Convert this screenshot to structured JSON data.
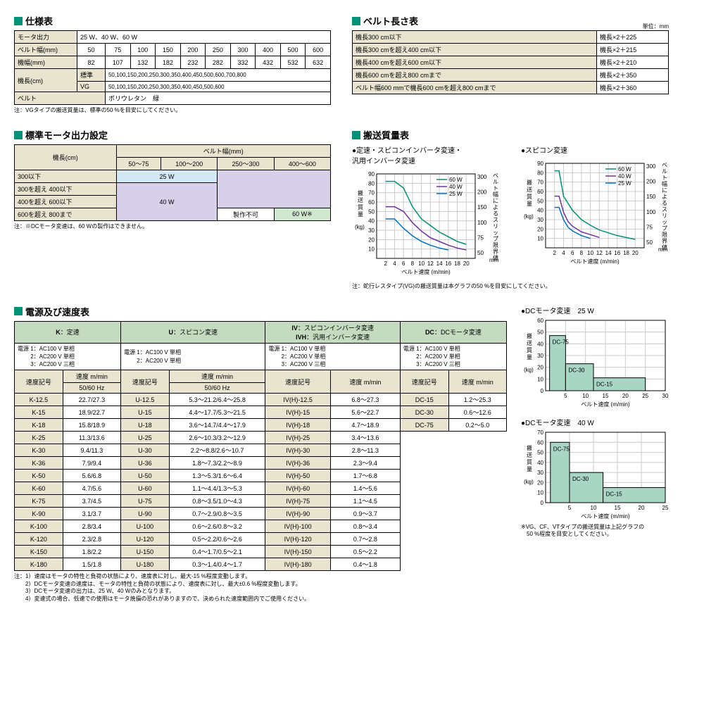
{
  "spec": {
    "title": "仕様表",
    "rows": [
      {
        "label": "モータ出力",
        "val": "25 W、40 W、60 W",
        "colspan": 10
      },
      {
        "label": "ベルト幅(mm)",
        "vals": [
          "50",
          "75",
          "100",
          "150",
          "200",
          "250",
          "300",
          "400",
          "500",
          "600"
        ]
      },
      {
        "label": "機幅(mm)",
        "vals": [
          "82",
          "107",
          "132",
          "182",
          "232",
          "282",
          "332",
          "432",
          "532",
          "632"
        ]
      }
    ],
    "kicho_label": "機長(cm)",
    "kicho_std_label": "標準",
    "kicho_std": "50,100,150,200,250,300,350,400,450,500,600,700,800",
    "kicho_vg_label": "VG",
    "kicho_vg": "50,100,150,200,250,300,350,400,450,500,600",
    "belt_label": "ベルト",
    "belt_val": "ポリウレタン　緑",
    "note": "注：VGタイプの搬送質量は、標準の50 %を目安にしてください。"
  },
  "beltlen": {
    "title": "ベルト長さ表",
    "unit": "単位：mm",
    "rows": [
      [
        "機長300 cm以下",
        "機長×2＋225"
      ],
      [
        "機長300 cmを超え400 cm以下",
        "機長×2＋215"
      ],
      [
        "機長400 cmを超え600 cm以下",
        "機長×2＋210"
      ],
      [
        "機長600 cmを超え800 cmまで",
        "機長×2＋350"
      ],
      [
        "ベルト幅600 mmで機長600 cmを超え800 cmまで",
        "機長×2＋360"
      ]
    ]
  },
  "motorset": {
    "title": "標準モータ出力設定",
    "kicho": "機長(cm)",
    "beltw": "ベルト幅(mm)",
    "cols": [
      "50～75",
      "100～200",
      "250～300",
      "400～600"
    ],
    "rows": [
      "300以下",
      "300を超え 400以下",
      "400を超え 600以下",
      "600を超え 800まで"
    ],
    "w25": "25 W",
    "w40": "40 W",
    "w60": "60 W※",
    "na": "製作不可",
    "note": "注：※DCモータ変速は、60 Wの製作はできません。"
  },
  "transport": {
    "title": "搬送質量表",
    "chart1_title": "●定速・スピコンインバータ変速・\n汎用インバータ変速",
    "chart2_title": "●スピコン変速",
    "xlabel": "ベルト速度 (m/min)",
    "ylabel": "搬送質量",
    "ylabel2": "ベルト幅によるスリップ限界値",
    "yunit": "(kg)",
    "y2unit": "mm",
    "legend": [
      "60 W",
      "40 W",
      "25 W"
    ],
    "colors": {
      "60": "#009176",
      "40": "#7030a0",
      "25": "#0070c0",
      "grid": "#cccccc",
      "bg": "#ffffff"
    },
    "xlim": [
      0,
      22
    ],
    "ylim": [
      0,
      90
    ],
    "y2labels": [
      "50",
      "75",
      "100",
      "150",
      "200",
      "300"
    ],
    "xticks": [
      2,
      4,
      6,
      8,
      10,
      12,
      14,
      16,
      18,
      20
    ],
    "yticks": [
      10,
      20,
      30,
      40,
      50,
      60,
      70,
      80,
      90
    ],
    "chart1_data": {
      "60": [
        [
          2,
          82
        ],
        [
          4,
          82
        ],
        [
          6,
          75
        ],
        [
          8,
          55
        ],
        [
          10,
          42
        ],
        [
          12,
          35
        ],
        [
          14,
          28
        ],
        [
          16,
          23
        ],
        [
          18,
          18
        ],
        [
          20,
          15
        ]
      ],
      "40": [
        [
          2,
          55
        ],
        [
          4,
          55
        ],
        [
          6,
          50
        ],
        [
          8,
          38
        ],
        [
          10,
          29
        ],
        [
          12,
          22
        ],
        [
          14,
          18
        ],
        [
          16,
          14
        ],
        [
          18,
          11
        ],
        [
          20,
          9
        ]
      ],
      "25": [
        [
          2,
          42
        ],
        [
          4,
          42
        ],
        [
          6,
          32
        ],
        [
          8,
          24
        ],
        [
          10,
          18
        ],
        [
          12,
          14
        ],
        [
          14,
          11
        ],
        [
          16,
          9
        ]
      ]
    },
    "chart2_data": {
      "60": [
        [
          2,
          82
        ],
        [
          3,
          82
        ],
        [
          4,
          55
        ],
        [
          6,
          40
        ],
        [
          8,
          30
        ],
        [
          10,
          24
        ],
        [
          12,
          19
        ],
        [
          14,
          16
        ],
        [
          16,
          13
        ],
        [
          18,
          11
        ],
        [
          20,
          9
        ]
      ],
      "40": [
        [
          2,
          55
        ],
        [
          3,
          55
        ],
        [
          4,
          38
        ],
        [
          5,
          28
        ],
        [
          6,
          23
        ],
        [
          8,
          17
        ],
        [
          10,
          14
        ],
        [
          12,
          11
        ]
      ],
      "25": [
        [
          2,
          43
        ],
        [
          3,
          43
        ],
        [
          4,
          30
        ],
        [
          5,
          22
        ],
        [
          6,
          18
        ],
        [
          8,
          13
        ],
        [
          10,
          10
        ]
      ]
    },
    "note": "注：蛇行レスタイプ(VG)の搬送質量は本グラフの50 %を目安にしてください。"
  },
  "speed": {
    "title": "電源及び速度表",
    "headers": [
      {
        "code": "K",
        "label": "定速",
        "ps": [
          "電源 1：AC100 V 単相",
          "　　 2：AC200 V 単相",
          "　　 3：AC200 V 三相"
        ]
      },
      {
        "code": "U",
        "label": "スピコン変速",
        "ps": [
          "電源 1：AC100 V 単相",
          "　　 2：AC200 V 単相"
        ]
      },
      {
        "code": "IV/IVH",
        "label": "スピコンインバータ変速/汎用インバータ変速",
        "ps": [
          "電源 1：AC100 V 単相",
          "　　 2：AC200 V 単相",
          "　　 3：AC200 V 三相"
        ]
      },
      {
        "code": "DC",
        "label": "DCモータ変速",
        "ps": [
          "電源 1：AC100 V 単相",
          "　　 2：AC200 V 単相",
          "　　 3：AC200 V 三相"
        ]
      }
    ],
    "sub": [
      "速度記号",
      "速度 m/min",
      "50/60 Hz"
    ],
    "rows": [
      [
        "K-12.5",
        "22.7/27.3",
        "U-12.5",
        "5.3～21.2/6.4～25.8",
        "IV(H)-12.5",
        "6.8～27.3",
        "DC-15",
        "1.2～25.3"
      ],
      [
        "K-15",
        "18.9/22.7",
        "U-15",
        "4.4～17.7/5.3～21.5",
        "IV(H)-15",
        "5.6～22.7",
        "DC-30",
        "0.6～12.6"
      ],
      [
        "K-18",
        "15.8/18.9",
        "U-18",
        "3.6～14.7/4.4～17.9",
        "IV(H)-18",
        "4.7～18.9",
        "DC-75",
        "0.2～5.0"
      ],
      [
        "K-25",
        "11.3/13.6",
        "U-25",
        "2.6～10.3/3.2～12.9",
        "IV(H)-25",
        "3.4～13.6"
      ],
      [
        "K-30",
        "9.4/11.3",
        "U-30",
        "2.2～8.8/2.6～10.7",
        "IV(H)-30",
        "2.8～11.3"
      ],
      [
        "K-36",
        "7.9/9.4",
        "U-36",
        "1.8～7.3/2.2～8.9",
        "IV(H)-36",
        "2.3～9.4"
      ],
      [
        "K-50",
        "5.6/6.8",
        "U-50",
        "1.3～5.3/1.6～6.4",
        "IV(H)-50",
        "1.7～6.8"
      ],
      [
        "K-60",
        "4.7/5.6",
        "U-60",
        "1.1～4.4/1.3～5.3",
        "IV(H)-60",
        "1.4～5.6"
      ],
      [
        "K-75",
        "3.7/4.5",
        "U-75",
        "0.8～3.5/1.0～4.3",
        "IV(H)-75",
        "1.1～4.5"
      ],
      [
        "K-90",
        "3.1/3.7",
        "U-90",
        "0.7～2.9/0.8～3.5",
        "IV(H)-90",
        "0.9～3.7"
      ],
      [
        "K-100",
        "2.8/3.4",
        "U-100",
        "0.6～2.6/0.8～3.2",
        "IV(H)-100",
        "0.8～3.4"
      ],
      [
        "K-120",
        "2.3/2.8",
        "U-120",
        "0.5～2.2/0.6～2.6",
        "IV(H)-120",
        "0.7～2.8"
      ],
      [
        "K-150",
        "1.8/2.2",
        "U-150",
        "0.4～1.7/0.5～2.1",
        "IV(H)-150",
        "0.5～2.2"
      ],
      [
        "K-180",
        "1.5/1.8",
        "U-180",
        "0.3～1.4/0.4～1.7",
        "IV(H)-180",
        "0.4～1.8"
      ]
    ],
    "notes": [
      "注：1）速度はモータの特性と負荷の状態により、速度表に対し、最大-15 %程度変動します。",
      "　　2）DCモータ変速の速度は、モータの特性と負荷の状態により、速度表に対し、最大±0.6 %程度変動します。",
      "　　3）DCモータ変速の出力は、25 W、40 Wのみとなります。",
      "　　4）変速式の場合、低速での使用はモータ焼損の恐れがありますので、決められた速度範囲内でご使用ください。"
    ]
  },
  "dc": {
    "t25": "●DCモータ変速　25 W",
    "t40": "●DCモータ変速　40 W",
    "xlabel": "ベルト速度 (m/min)",
    "ylabel": "搬送質量",
    "yunit": "(kg)",
    "color": "#a8d5c4",
    "border": "#000",
    "data25": [
      {
        "l": "DC-75",
        "x": [
          1,
          5
        ],
        "y": 47
      },
      {
        "l": "DC-30",
        "x": [
          5,
          12
        ],
        "y": 23
      },
      {
        "l": "DC-15",
        "x": [
          12,
          25
        ],
        "y": 11
      }
    ],
    "data40": [
      {
        "l": "DC-75",
        "x": [
          1,
          5
        ],
        "y": 60
      },
      {
        "l": "DC-30",
        "x": [
          5,
          12
        ],
        "y": 30
      },
      {
        "l": "DC-15",
        "x": [
          12,
          25
        ],
        "y": 15
      }
    ],
    "xtick25": [
      5,
      10,
      15,
      20,
      25,
      30
    ],
    "ytick25": [
      0,
      10,
      20,
      30,
      40,
      50,
      60
    ],
    "xtick40": [
      5,
      10,
      15,
      20,
      25
    ],
    "ytick40": [
      0,
      10,
      20,
      30,
      40,
      50,
      60,
      70
    ],
    "note": "※VG、CF、VTタイプの搬送質量は上記グラフの\n　50 %程度を目安としてください。"
  }
}
